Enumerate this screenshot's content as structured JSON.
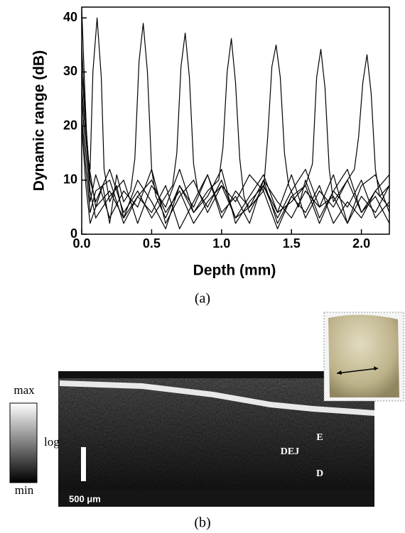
{
  "chart_data": {
    "type": "line",
    "xlabel": "Depth (mm)",
    "ylabel": "Dynamic range (dB)",
    "xlim": [
      0,
      2.2
    ],
    "ylim": [
      0,
      42
    ],
    "xticks": [
      {
        "value": 0,
        "label": "0.0"
      },
      0.5,
      {
        "value": 1,
        "label": "1.0"
      },
      1.5,
      {
        "value": 2,
        "label": "2.0"
      }
    ],
    "yticks": [
      0,
      10,
      20,
      30,
      40
    ],
    "series": [
      {
        "color": "#000000",
        "x": [
          0,
          0.02,
          0.04,
          0.06,
          0.08,
          0.11,
          0.14,
          0.16,
          0.2,
          0.25,
          0.3,
          0.4,
          0.5,
          0.6,
          0.7,
          0.8,
          0.9,
          1.0,
          1.1,
          1.2,
          1.3,
          1.4,
          1.5,
          1.6,
          1.7,
          1.8,
          1.9,
          2.0,
          2.1,
          2.2
        ],
        "values": [
          42,
          28,
          15,
          12,
          30,
          40,
          29,
          12,
          6,
          9,
          3,
          7,
          10,
          4,
          8,
          2,
          6,
          9,
          3,
          5,
          8,
          1,
          7,
          4,
          9,
          2,
          6,
          3,
          8,
          5
        ]
      },
      {
        "color": "#000000",
        "x": [
          0,
          0.02,
          0.05,
          0.1,
          0.15,
          0.2,
          0.25,
          0.3,
          0.35,
          0.38,
          0.41,
          0.44,
          0.47,
          0.5,
          0.53,
          0.6,
          0.7,
          0.8,
          0.9,
          1.0,
          1.1,
          1.2,
          1.3,
          1.4,
          1.5,
          1.6,
          1.7,
          1.8,
          1.9,
          2.0,
          2.1,
          2.2
        ],
        "values": [
          35,
          24,
          13,
          5,
          9,
          2,
          11,
          6,
          8,
          14,
          32,
          39,
          30,
          12,
          7,
          3,
          9,
          5,
          11,
          4,
          7,
          2,
          10,
          6,
          3,
          8,
          5,
          11,
          2,
          7,
          4,
          9
        ]
      },
      {
        "color": "#000000",
        "x": [
          0,
          0.03,
          0.06,
          0.1,
          0.2,
          0.3,
          0.4,
          0.5,
          0.6,
          0.65,
          0.68,
          0.71,
          0.74,
          0.77,
          0.8,
          0.83,
          0.9,
          1.0,
          1.1,
          1.2,
          1.3,
          1.4,
          1.5,
          1.6,
          1.7,
          1.8,
          1.9,
          2.0,
          2.1,
          2.2
        ],
        "values": [
          30,
          20,
          10,
          6,
          12,
          4,
          8,
          3,
          7,
          9,
          15,
          31,
          37.2,
          29,
          13,
          8,
          5,
          10,
          3,
          7,
          11,
          4,
          6,
          9,
          2,
          8,
          5,
          10,
          3,
          6
        ]
      },
      {
        "color": "#000000",
        "x": [
          0,
          0.03,
          0.06,
          0.1,
          0.2,
          0.3,
          0.4,
          0.5,
          0.6,
          0.7,
          0.8,
          0.9,
          0.98,
          1.01,
          1.04,
          1.07,
          1.1,
          1.13,
          1.16,
          1.2,
          1.3,
          1.4,
          1.5,
          1.6,
          1.7,
          1.8,
          1.9,
          2.0,
          2.1,
          2.2
        ],
        "values": [
          27,
          18,
          8,
          3,
          7,
          10,
          2,
          9,
          5,
          12,
          4,
          8,
          10,
          16,
          30,
          36.2,
          28,
          14,
          7,
          4,
          9,
          3,
          8,
          12,
          5,
          7,
          2,
          9,
          11,
          4
        ]
      },
      {
        "color": "#000000",
        "x": [
          0,
          0.03,
          0.06,
          0.1,
          0.2,
          0.3,
          0.4,
          0.5,
          0.6,
          0.7,
          0.8,
          0.9,
          1.0,
          1.1,
          1.2,
          1.3,
          1.33,
          1.36,
          1.39,
          1.42,
          1.45,
          1.48,
          1.55,
          1.6,
          1.7,
          1.8,
          1.9,
          2.0,
          2.1,
          2.2
        ],
        "values": [
          25,
          15,
          6,
          11,
          3,
          8,
          5,
          12,
          2,
          7,
          10,
          4,
          9,
          6,
          11,
          8,
          18,
          31,
          35,
          29,
          15,
          9,
          5,
          10,
          3,
          8,
          12,
          4,
          7,
          2
        ]
      },
      {
        "color": "#000000",
        "x": [
          0,
          0.03,
          0.06,
          0.1,
          0.2,
          0.3,
          0.4,
          0.5,
          0.6,
          0.7,
          0.8,
          0.9,
          1.0,
          1.1,
          1.2,
          1.3,
          1.4,
          1.5,
          1.6,
          1.65,
          1.68,
          1.71,
          1.74,
          1.77,
          1.8,
          1.9,
          2.0,
          2.1,
          2.2
        ],
        "values": [
          22,
          12,
          4,
          8,
          10,
          2,
          7,
          4,
          9,
          1,
          6,
          11,
          3,
          8,
          5,
          10,
          2,
          7,
          9,
          13,
          29,
          34.2,
          27,
          12,
          6,
          10,
          4,
          8,
          11
        ]
      },
      {
        "color": "#000000",
        "x": [
          0,
          0.03,
          0.06,
          0.1,
          0.2,
          0.3,
          0.4,
          0.5,
          0.6,
          0.7,
          0.8,
          0.9,
          1.0,
          1.1,
          1.2,
          1.3,
          1.4,
          1.5,
          1.6,
          1.7,
          1.8,
          1.9,
          1.95,
          1.98,
          2.01,
          2.04,
          2.07,
          2.1,
          2.13,
          2.2
        ],
        "values": [
          20,
          9,
          2,
          5,
          8,
          3,
          10,
          6,
          1,
          9,
          4,
          7,
          12,
          2,
          6,
          9,
          4,
          11,
          3,
          8,
          5,
          10,
          12,
          18,
          28,
          33.2,
          26,
          12,
          7,
          9
        ]
      }
    ]
  },
  "figure": {
    "panel_a_label": "(a)",
    "panel_b_label": "(b)",
    "colorbar": {
      "max": "max",
      "log": "log",
      "min": "min"
    },
    "image_labels": {
      "e": "E",
      "dej": "DEJ",
      "d": "D"
    },
    "scale_bar": "500 μm"
  }
}
